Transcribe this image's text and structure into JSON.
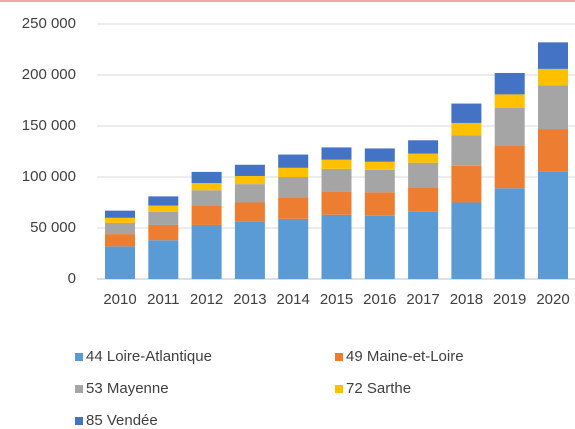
{
  "chart_data": {
    "type": "bar",
    "stacked": true,
    "categories": [
      "2010",
      "2011",
      "2012",
      "2013",
      "2014",
      "2015",
      "2016",
      "2017",
      "2018",
      "2019",
      "2020"
    ],
    "series": [
      {
        "name": "44 Loire-Atlantique",
        "color": "#5b9bd5",
        "values": [
          32000,
          38000,
          53000,
          56000,
          59000,
          63000,
          62000,
          66000,
          75000,
          89000,
          105000
        ]
      },
      {
        "name": "49 Maine-et-Loire",
        "color": "#ed7d31",
        "values": [
          12000,
          15000,
          19000,
          19000,
          21000,
          23000,
          23000,
          24000,
          36000,
          42000,
          42000
        ]
      },
      {
        "name": "53 Mayenne",
        "color": "#a5a5a5",
        "values": [
          11000,
          13000,
          15000,
          18000,
          20000,
          22000,
          22000,
          24000,
          30000,
          37000,
          43000
        ]
      },
      {
        "name": "72 Sarthe",
        "color": "#ffc000",
        "values": [
          5000,
          6000,
          7000,
          8000,
          9000,
          9000,
          8000,
          9000,
          12000,
          13000,
          16000
        ]
      },
      {
        "name": "85 Vendée",
        "color": "#4472c4",
        "values": [
          7000,
          9000,
          11000,
          11000,
          13000,
          12000,
          13000,
          13000,
          19000,
          21000,
          26000
        ]
      }
    ],
    "ylim": [
      0,
      250000
    ],
    "yticks": [
      0,
      {
        "value": 50000,
        "label": "50 000"
      },
      {
        "value": 100000,
        "label": "100 000"
      },
      {
        "value": 150000,
        "label": "150 000"
      },
      {
        "value": 200000,
        "label": "200 000"
      },
      {
        "value": 250000,
        "label": "250 000"
      }
    ],
    "grid": true
  }
}
